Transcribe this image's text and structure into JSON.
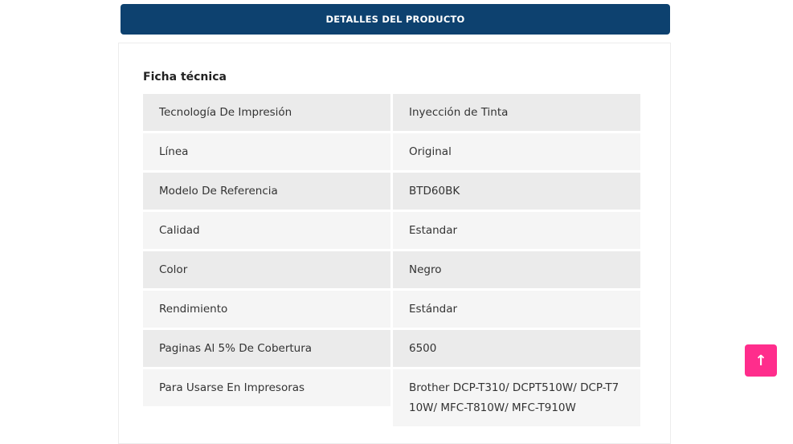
{
  "tab": {
    "label": "DETALLES DEL PRODUCTO"
  },
  "section": {
    "title": "Ficha técnica"
  },
  "specs": [
    {
      "label": "Tecnología De Impresión",
      "value": "Inyección de Tinta"
    },
    {
      "label": "Línea",
      "value": "Original"
    },
    {
      "label": "Modelo De Referencia",
      "value": "BTD60BK"
    },
    {
      "label": "Calidad",
      "value": "Estandar"
    },
    {
      "label": "Color",
      "value": "Negro"
    },
    {
      "label": "Rendimiento",
      "value": "Estándar"
    },
    {
      "label": "Paginas Al 5% De Cobertura",
      "value": "6500"
    },
    {
      "label": "Para Usarse En Impresoras",
      "value": "Brother DCP-T310/ DCPT510W/ DCP-T710W/ MFC-T810W/ MFC-T910W"
    }
  ],
  "scroll_top": {
    "icon": "arrow-up-icon",
    "color": "#ff2d8c"
  },
  "colors": {
    "tab_bg": "#0d416f"
  }
}
